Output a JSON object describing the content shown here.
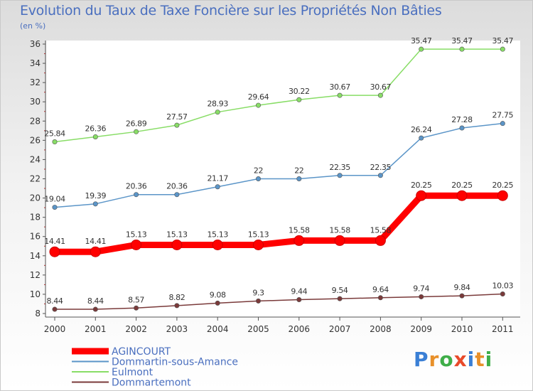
{
  "title": "Evolution du Taux de Taxe Foncière sur les Propriétés Non Bâties",
  "unit_label": "(en %)",
  "logo": {
    "letters": [
      "P",
      "r",
      "o",
      "x",
      "i",
      "t",
      "i"
    ],
    "colors": [
      "#3a7fd5",
      "#e8902a",
      "#3fae49",
      "#e84a2a",
      "#3a7fd5",
      "#e8902a",
      "#3fae49"
    ]
  },
  "chart_data": {
    "type": "line",
    "x": [
      "2000",
      "2001",
      "2002",
      "2003",
      "2004",
      "2005",
      "2006",
      "2007",
      "2008",
      "2009",
      "2010",
      "2011"
    ],
    "ylim": [
      8,
      36
    ],
    "yticks": [
      8,
      10,
      12,
      14,
      16,
      18,
      20,
      22,
      24,
      26,
      28,
      30,
      32,
      34,
      36
    ],
    "grid": false,
    "legend_position": "bottom-left",
    "series": [
      {
        "name": "AGINCOURT",
        "color": "#ff0000",
        "emphasis": true,
        "values": [
          14.41,
          14.41,
          15.13,
          15.13,
          15.13,
          15.13,
          15.58,
          15.58,
          15.58,
          20.25,
          20.25,
          20.25
        ],
        "labels": [
          "14.41",
          "14.41",
          "15.13",
          "15.13",
          "15.13",
          "15.13",
          "15.58",
          "15.58",
          "15.58",
          "20.25",
          "20.25",
          "20.25"
        ]
      },
      {
        "name": "Dommartin-sous-Amance",
        "color": "#5b95c8",
        "emphasis": false,
        "values": [
          19.04,
          19.39,
          20.36,
          20.36,
          21.17,
          22,
          22,
          22.35,
          22.35,
          26.24,
          27.28,
          27.75
        ],
        "labels": [
          "19.04",
          "19.39",
          "20.36",
          "20.36",
          "21.17",
          "22",
          "22",
          "22.35",
          "22.35",
          "26.24",
          "27.28",
          "27.75"
        ]
      },
      {
        "name": "Eulmont",
        "color": "#88dd66",
        "emphasis": false,
        "values": [
          25.84,
          26.36,
          26.89,
          27.57,
          28.93,
          29.64,
          30.22,
          30.67,
          30.67,
          35.47,
          35.47,
          35.47
        ],
        "labels": [
          "25.84",
          "26.36",
          "26.89",
          "27.57",
          "28.93",
          "29.64",
          "30.22",
          "30.67",
          "30.67",
          "35.47",
          "35.47",
          "35.47"
        ]
      },
      {
        "name": "Dommartemont",
        "color": "#7a3a3a",
        "emphasis": false,
        "values": [
          8.44,
          8.44,
          8.57,
          8.82,
          9.08,
          9.3,
          9.44,
          9.54,
          9.64,
          9.74,
          9.84,
          10.03
        ],
        "labels": [
          "8.44",
          "8.44",
          "8.57",
          "8.82",
          "9.08",
          "9.3",
          "9.44",
          "9.54",
          "9.64",
          "9.74",
          "9.84",
          "10.03"
        ]
      }
    ]
  }
}
